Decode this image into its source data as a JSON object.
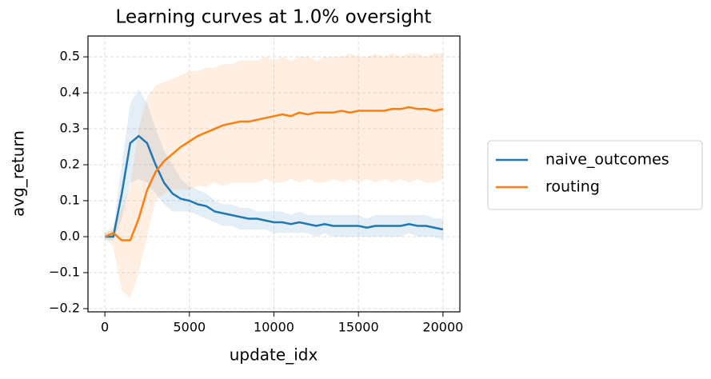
{
  "chart_data": {
    "type": "line",
    "title": "Learning curves at 1.0% oversight",
    "x_label": "update_idx",
    "y_label": "avg_return",
    "x": [
      0,
      500,
      1000,
      1500,
      2000,
      2500,
      3000,
      3500,
      4000,
      4500,
      5000,
      5500,
      6000,
      6500,
      7000,
      7500,
      8000,
      8500,
      9000,
      9500,
      10000,
      10500,
      11000,
      11500,
      12000,
      12500,
      13000,
      13500,
      14000,
      14500,
      15000,
      15500,
      16000,
      16500,
      17000,
      17500,
      18000,
      18500,
      19000,
      19500,
      20000
    ],
    "series": [
      {
        "name": "naive_outcomes",
        "color": "#1f77b4",
        "values": [
          0.0,
          0.0,
          0.12,
          0.26,
          0.28,
          0.26,
          0.2,
          0.15,
          0.12,
          0.105,
          0.1,
          0.09,
          0.085,
          0.07,
          0.065,
          0.06,
          0.055,
          0.05,
          0.05,
          0.045,
          0.04,
          0.04,
          0.035,
          0.04,
          0.035,
          0.03,
          0.035,
          0.03,
          0.03,
          0.03,
          0.03,
          0.025,
          0.03,
          0.03,
          0.03,
          0.03,
          0.035,
          0.03,
          0.03,
          0.025,
          0.02
        ],
        "lower": [
          -0.01,
          -0.01,
          0.05,
          0.15,
          0.16,
          0.15,
          0.12,
          0.09,
          0.07,
          0.07,
          0.07,
          0.06,
          0.05,
          0.04,
          0.03,
          0.03,
          0.02,
          0.02,
          0.02,
          0.02,
          0.01,
          0.01,
          0.01,
          0.01,
          0.01,
          0.0,
          0.01,
          0.0,
          0.0,
          0.0,
          0.0,
          0.0,
          0.0,
          0.0,
          0.0,
          0.0,
          0.01,
          0.0,
          0.0,
          0.0,
          -0.01
        ],
        "upper": [
          0.01,
          0.02,
          0.2,
          0.37,
          0.41,
          0.37,
          0.3,
          0.24,
          0.2,
          0.16,
          0.14,
          0.13,
          0.12,
          0.1,
          0.09,
          0.09,
          0.08,
          0.08,
          0.07,
          0.07,
          0.07,
          0.07,
          0.06,
          0.07,
          0.06,
          0.06,
          0.06,
          0.06,
          0.06,
          0.06,
          0.06,
          0.05,
          0.06,
          0.06,
          0.06,
          0.06,
          0.06,
          0.06,
          0.06,
          0.05,
          0.05
        ]
      },
      {
        "name": "routing",
        "color": "#ff7f0e",
        "values": [
          0.0,
          0.01,
          -0.01,
          -0.01,
          0.05,
          0.13,
          0.18,
          0.21,
          0.23,
          0.25,
          0.265,
          0.28,
          0.29,
          0.3,
          0.31,
          0.315,
          0.32,
          0.32,
          0.325,
          0.33,
          0.335,
          0.34,
          0.335,
          0.345,
          0.34,
          0.345,
          0.345,
          0.345,
          0.35,
          0.345,
          0.35,
          0.35,
          0.35,
          0.35,
          0.355,
          0.355,
          0.36,
          0.355,
          0.355,
          0.35,
          0.355
        ],
        "lower": [
          0.0,
          -0.03,
          -0.15,
          -0.17,
          -0.1,
          0.0,
          0.1,
          0.12,
          0.13,
          0.13,
          0.13,
          0.14,
          0.14,
          0.15,
          0.14,
          0.15,
          0.15,
          0.15,
          0.15,
          0.16,
          0.15,
          0.15,
          0.16,
          0.15,
          0.16,
          0.15,
          0.15,
          0.16,
          0.15,
          0.16,
          0.15,
          0.16,
          0.15,
          0.16,
          0.15,
          0.16,
          0.15,
          0.16,
          0.15,
          0.15,
          0.16
        ],
        "upper": [
          0.01,
          0.03,
          0.08,
          0.14,
          0.3,
          0.39,
          0.42,
          0.43,
          0.44,
          0.45,
          0.46,
          0.46,
          0.47,
          0.47,
          0.48,
          0.48,
          0.49,
          0.49,
          0.49,
          0.5,
          0.49,
          0.5,
          0.49,
          0.5,
          0.5,
          0.49,
          0.5,
          0.5,
          0.5,
          0.51,
          0.5,
          0.5,
          0.51,
          0.5,
          0.51,
          0.5,
          0.51,
          0.51,
          0.5,
          0.51,
          0.51
        ]
      }
    ],
    "xlim": [
      -1000,
      21000
    ],
    "ylim": [
      -0.209,
      0.558
    ],
    "xticks": [
      0,
      5000,
      10000,
      15000,
      20000
    ],
    "yticks": [
      {
        "value": -0.2,
        "label": "−0.2"
      },
      {
        "value": -0.1,
        "label": "−0.1"
      },
      {
        "value": 0,
        "label": "0.0"
      },
      0.1,
      0.2,
      0.3,
      0.4,
      0.5
    ],
    "grid": true,
    "legend": "outside right"
  }
}
